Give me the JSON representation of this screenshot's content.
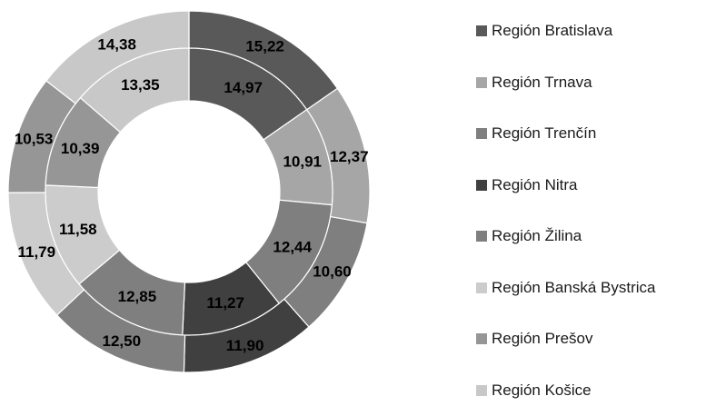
{
  "chart_data": {
    "type": "donut",
    "categories": [
      "Región Bratislava",
      "Región Trnava",
      "Región Trenčín",
      "Región Nitra",
      "Región Žilina",
      "Región Banská Bystrica",
      "Región Prešov",
      "Región Košice"
    ],
    "series": [
      {
        "ring": "outer",
        "values": [
          15.22,
          12.37,
          10.6,
          11.9,
          12.5,
          11.79,
          10.53,
          14.38
        ],
        "labels": [
          "15,22",
          "12,37",
          "10,60",
          "11,90",
          "12,50",
          "11,79",
          "10,53",
          "14,38"
        ]
      },
      {
        "ring": "inner",
        "values": [
          14.97,
          10.91,
          12.44,
          11.27,
          12.85,
          11.58,
          10.39,
          13.35
        ],
        "labels": [
          "14,97",
          "10,91",
          "12,44",
          "11,27",
          "12,85",
          "11,58",
          "10,39",
          "13,35"
        ]
      }
    ],
    "colors": [
      "#595959",
      "#a6a6a6",
      "#7f7f7f",
      "#404040",
      "#7f7f7f",
      "#cccccc",
      "#969696",
      "#c8c8c8"
    ],
    "legend_position": "right"
  }
}
